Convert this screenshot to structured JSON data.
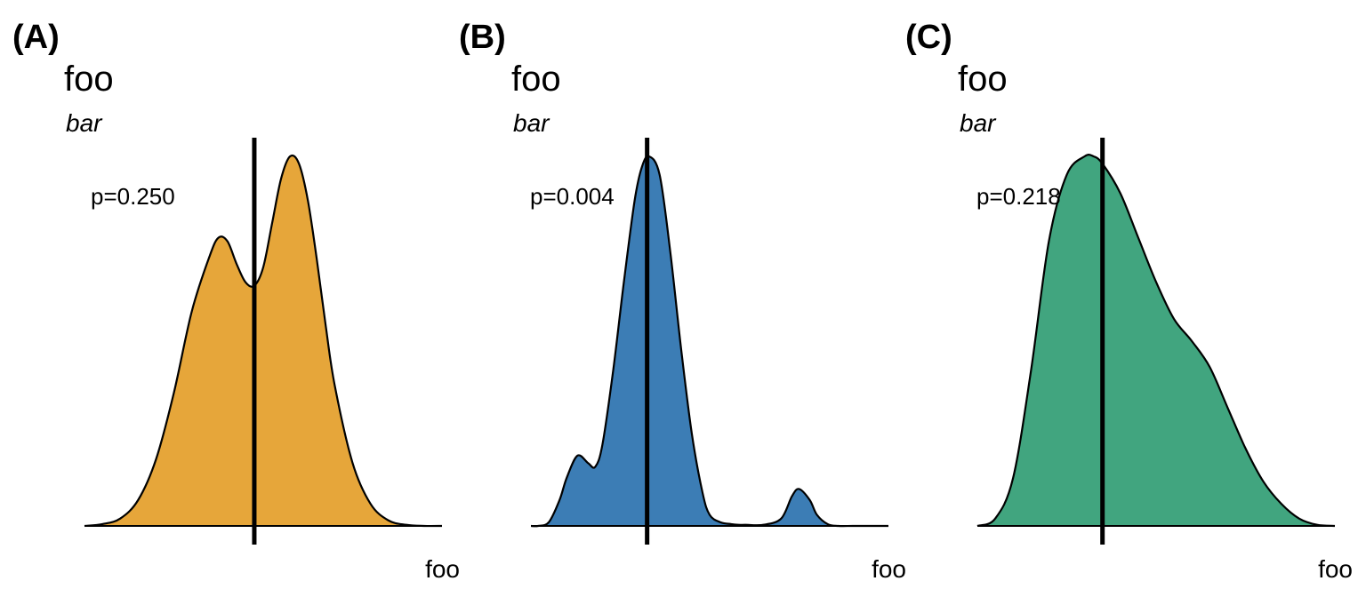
{
  "chart_data": [
    {
      "type": "area",
      "tag": "(A)",
      "title": "foo",
      "subtitle": "bar",
      "xlabel": "foo",
      "annotation": "p=0.250",
      "fill_color": "#E6A63A",
      "xlim": [
        0,
        10
      ],
      "ylim": [
        0,
        1
      ],
      "x": [
        0,
        0.5,
        1.0,
        1.5,
        2.0,
        2.5,
        3.0,
        3.5,
        3.75,
        4.0,
        4.25,
        4.5,
        4.75,
        5.0,
        5.25,
        5.5,
        5.75,
        6.0,
        6.25,
        6.5,
        6.75,
        7.0,
        7.5,
        8.0,
        8.5,
        9.0,
        9.5,
        10.0
      ],
      "y": [
        0,
        0.005,
        0.02,
        0.07,
        0.18,
        0.36,
        0.58,
        0.73,
        0.78,
        0.77,
        0.71,
        0.66,
        0.65,
        0.7,
        0.82,
        0.94,
        1.0,
        0.98,
        0.88,
        0.72,
        0.54,
        0.38,
        0.17,
        0.06,
        0.015,
        0.003,
        0.0,
        0.0
      ],
      "vline": 4.75
    },
    {
      "type": "area",
      "tag": "(B)",
      "title": "foo",
      "subtitle": "bar",
      "xlabel": "foo",
      "annotation": "p=0.004",
      "fill_color": "#3C7DB5",
      "xlim": [
        0,
        10
      ],
      "ylim": [
        0,
        1
      ],
      "x": [
        0,
        0.2,
        0.5,
        0.8,
        1.0,
        1.3,
        1.6,
        1.8,
        2.0,
        2.3,
        2.6,
        2.9,
        3.1,
        3.3,
        3.6,
        3.9,
        4.2,
        4.5,
        4.8,
        5.0,
        5.3,
        5.6,
        5.8,
        6.0,
        6.5,
        7.0,
        7.3,
        7.5,
        7.8,
        8.0,
        8.3,
        8.6,
        9.0,
        9.5,
        10.0
      ],
      "y": [
        0,
        0,
        0.01,
        0.07,
        0.13,
        0.19,
        0.17,
        0.16,
        0.22,
        0.42,
        0.66,
        0.88,
        0.97,
        1.0,
        0.95,
        0.74,
        0.48,
        0.25,
        0.09,
        0.03,
        0.01,
        0.005,
        0.003,
        0.003,
        0.003,
        0.02,
        0.08,
        0.1,
        0.07,
        0.03,
        0.005,
        0,
        0,
        0,
        0
      ],
      "vline": 3.25
    },
    {
      "type": "area",
      "tag": "(C)",
      "title": "foo",
      "subtitle": "bar",
      "xlabel": "foo",
      "annotation": "p=0.218",
      "fill_color": "#41A57F",
      "xlim": [
        0,
        10
      ],
      "ylim": [
        0,
        1
      ],
      "x": [
        0,
        0.5,
        1.0,
        1.5,
        2.0,
        2.5,
        3.0,
        3.25,
        3.5,
        4.0,
        4.5,
        5.0,
        5.5,
        6.0,
        6.5,
        7.0,
        7.5,
        8.0,
        8.5,
        9.0,
        9.5,
        10.0
      ],
      "y": [
        0,
        0.02,
        0.13,
        0.42,
        0.77,
        0.95,
        1.0,
        1.0,
        0.98,
        0.9,
        0.78,
        0.66,
        0.56,
        0.5,
        0.43,
        0.32,
        0.21,
        0.12,
        0.06,
        0.02,
        0.003,
        0.0
      ],
      "vline": 3.5
    }
  ]
}
